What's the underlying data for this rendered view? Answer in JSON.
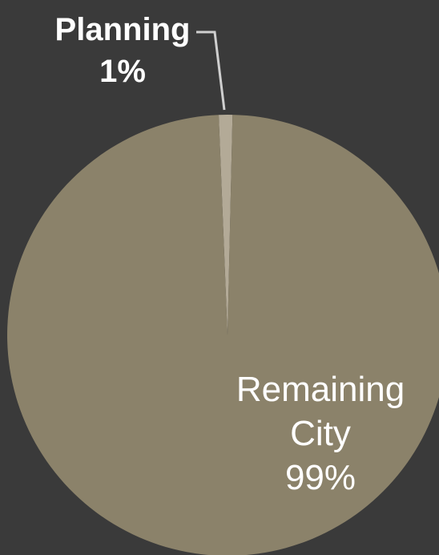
{
  "chart_data": {
    "type": "pie",
    "categories": [
      "Planning",
      "Remaining City"
    ],
    "values": [
      1,
      99
    ],
    "labels": [
      {
        "lines": [
          "Planning",
          "1%"
        ]
      },
      {
        "lines": [
          "Remaining",
          "City",
          "99%"
        ]
      }
    ],
    "colors": [
      "#b3aa97",
      "#8b826a"
    ],
    "background": "#3a3a3a",
    "leader_color": "#cfcfcf",
    "title": "",
    "legend": "none"
  }
}
